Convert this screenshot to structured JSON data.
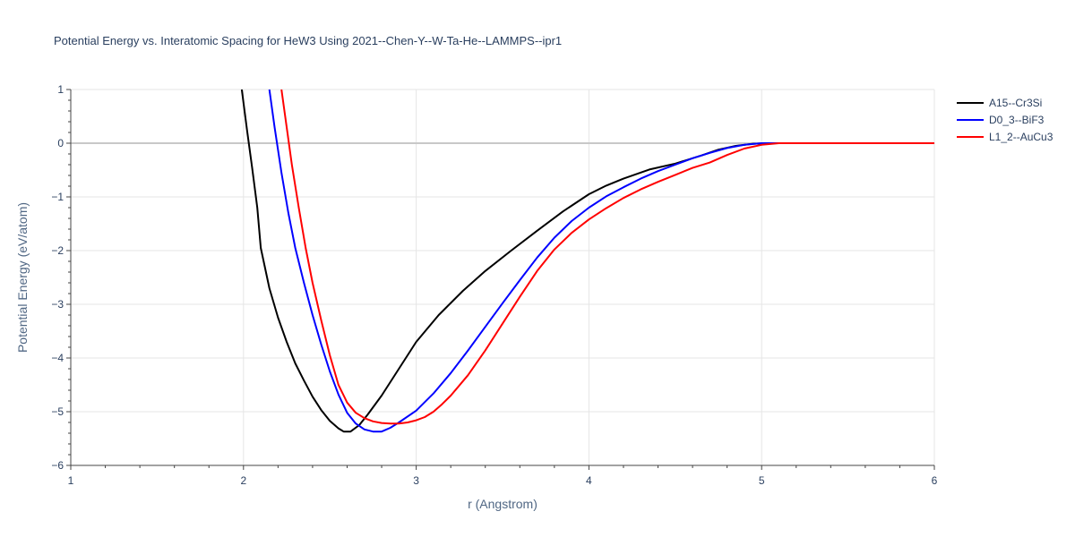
{
  "chart_data": {
    "type": "line",
    "title": "Potential Energy vs. Interatomic Spacing for HeW3 Using 2021--Chen-Y--W-Ta-He--LAMMPS--ipr1",
    "xlabel": "r (Angstrom)",
    "ylabel": "Potential Energy (eV/atom)",
    "xlim": [
      1,
      6
    ],
    "ylim": [
      -6,
      1
    ],
    "xticks": [
      1,
      2,
      3,
      4,
      5,
      6
    ],
    "xtick_labels": [
      "1",
      "2",
      "3",
      "4",
      "5",
      "6"
    ],
    "yticks": [
      1,
      0,
      -1,
      -2,
      -3,
      -4,
      -5,
      -6
    ],
    "ytick_labels": [
      "1",
      "0",
      "−1",
      "−2",
      "−3",
      "−4",
      "−5",
      "−6"
    ],
    "grid": true,
    "legend_position": "top-right",
    "series": [
      {
        "name": "A15--Cr3Si",
        "color": "#000000",
        "x": [
          1.99,
          2.02,
          2.05,
          2.08,
          2.1,
          2.15,
          2.2,
          2.25,
          2.3,
          2.35,
          2.4,
          2.45,
          2.5,
          2.55,
          2.58,
          2.62,
          2.67,
          2.72,
          2.8,
          2.9,
          3.0,
          3.13,
          3.27,
          3.4,
          3.55,
          3.7,
          3.85,
          4.0,
          4.1,
          4.2,
          4.35,
          4.5,
          4.65,
          4.75,
          4.85,
          4.95,
          5.05,
          5.15,
          5.3,
          5.6,
          6.0
        ],
        "y": [
          1.0,
          0.25,
          -0.45,
          -1.2,
          -1.95,
          -2.7,
          -3.25,
          -3.7,
          -4.1,
          -4.42,
          -4.72,
          -4.97,
          -5.17,
          -5.31,
          -5.37,
          -5.37,
          -5.25,
          -5.05,
          -4.7,
          -4.2,
          -3.7,
          -3.2,
          -2.75,
          -2.38,
          -2.0,
          -1.63,
          -1.27,
          -0.95,
          -0.79,
          -0.66,
          -0.49,
          -0.38,
          -0.23,
          -0.12,
          -0.05,
          -0.01,
          0.0,
          0.0,
          0.0,
          0.0,
          0.0
        ]
      },
      {
        "name": "D0_3--BiF3",
        "color": "#0000ff",
        "x": [
          2.15,
          2.18,
          2.22,
          2.26,
          2.3,
          2.35,
          2.4,
          2.45,
          2.5,
          2.55,
          2.6,
          2.65,
          2.7,
          2.75,
          2.8,
          2.85,
          2.9,
          3.0,
          3.1,
          3.2,
          3.3,
          3.4,
          3.5,
          3.6,
          3.7,
          3.8,
          3.9,
          4.0,
          4.1,
          4.2,
          4.3,
          4.4,
          4.5,
          4.6,
          4.7,
          4.8,
          4.9,
          5.0,
          5.1,
          5.2,
          5.4,
          6.0
        ],
        "y": [
          1.0,
          0.3,
          -0.55,
          -1.3,
          -1.95,
          -2.6,
          -3.2,
          -3.75,
          -4.25,
          -4.68,
          -5.02,
          -5.22,
          -5.33,
          -5.37,
          -5.37,
          -5.3,
          -5.2,
          -4.98,
          -4.66,
          -4.28,
          -3.86,
          -3.42,
          -2.98,
          -2.55,
          -2.13,
          -1.76,
          -1.45,
          -1.2,
          -0.99,
          -0.82,
          -0.66,
          -0.52,
          -0.4,
          -0.28,
          -0.18,
          -0.09,
          -0.03,
          0.0,
          0.0,
          0.0,
          0.0,
          0.0
        ]
      },
      {
        "name": "L1_2--AuCu3",
        "color": "#ff0000",
        "x": [
          2.22,
          2.25,
          2.28,
          2.32,
          2.36,
          2.4,
          2.45,
          2.5,
          2.55,
          2.6,
          2.65,
          2.7,
          2.75,
          2.8,
          2.85,
          2.9,
          2.95,
          3.0,
          3.05,
          3.1,
          3.15,
          3.2,
          3.3,
          3.4,
          3.5,
          3.6,
          3.7,
          3.8,
          3.9,
          4.0,
          4.1,
          4.2,
          4.3,
          4.4,
          4.5,
          4.6,
          4.7,
          4.8,
          4.9,
          5.0,
          5.1,
          5.2,
          5.4,
          6.0
        ],
        "y": [
          1.0,
          0.3,
          -0.4,
          -1.2,
          -1.95,
          -2.6,
          -3.3,
          -3.95,
          -4.5,
          -4.83,
          -5.02,
          -5.12,
          -5.18,
          -5.21,
          -5.22,
          -5.22,
          -5.2,
          -5.16,
          -5.1,
          -5.0,
          -4.86,
          -4.7,
          -4.32,
          -3.86,
          -3.36,
          -2.86,
          -2.38,
          -1.98,
          -1.67,
          -1.42,
          -1.21,
          -1.02,
          -0.86,
          -0.72,
          -0.59,
          -0.46,
          -0.36,
          -0.22,
          -0.1,
          -0.03,
          0.0,
          0.0,
          0.0,
          0.0
        ]
      }
    ]
  }
}
